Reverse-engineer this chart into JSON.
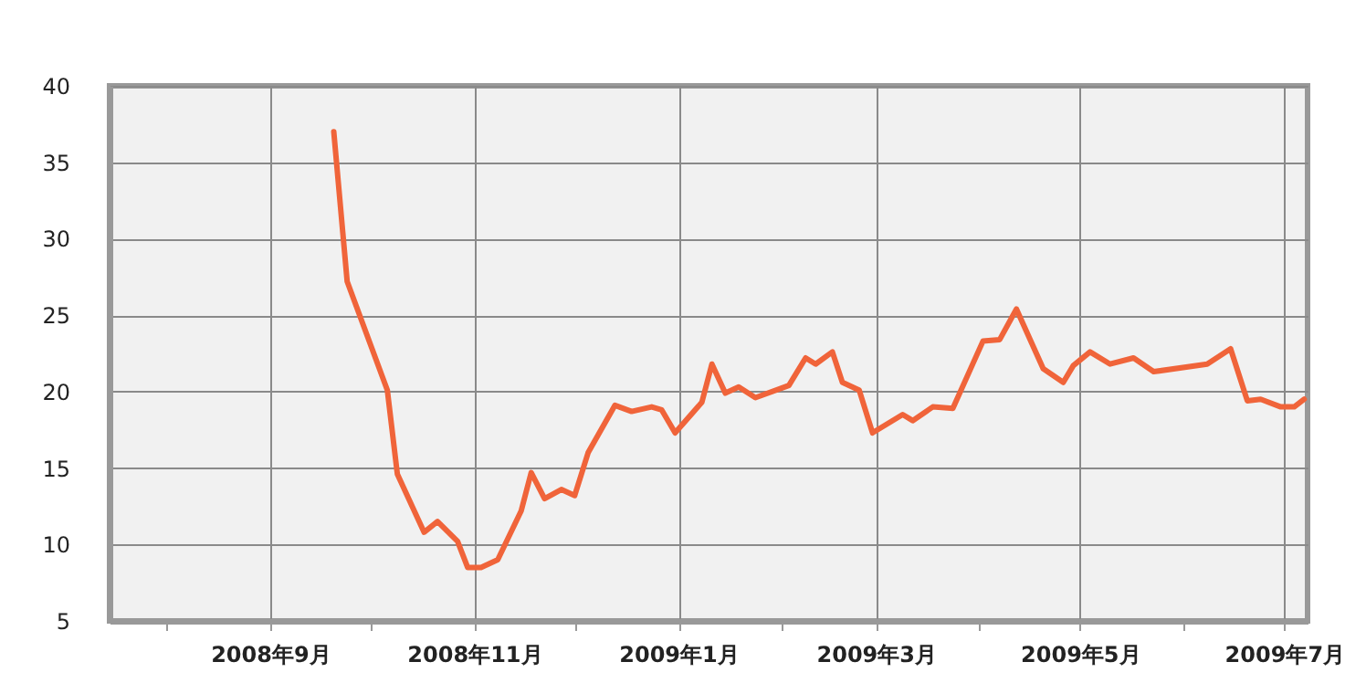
{
  "chart_data": {
    "type": "line",
    "x": [
      "2008-09-20",
      "2008-09-24",
      "2008-10-06",
      "2008-10-09",
      "2008-10-17",
      "2008-10-21",
      "2008-10-27",
      "2008-10-30",
      "2008-11-03",
      "2008-11-08",
      "2008-11-15",
      "2008-11-18",
      "2008-11-22",
      "2008-11-27",
      "2008-12-01",
      "2008-12-05",
      "2008-12-13",
      "2008-12-18",
      "2008-12-24",
      "2008-12-27",
      "2008-12-31",
      "2009-01-08",
      "2009-01-11",
      "2009-01-15",
      "2009-01-19",
      "2009-01-24",
      "2009-02-03",
      "2009-02-08",
      "2009-02-11",
      "2009-02-16",
      "2009-02-19",
      "2009-02-24",
      "2009-02-28",
      "2009-03-09",
      "2009-03-12",
      "2009-03-18",
      "2009-03-24",
      "2009-04-02",
      "2009-04-07",
      "2009-04-12",
      "2009-04-20",
      "2009-04-26",
      "2009-04-29",
      "2009-05-04",
      "2009-05-10",
      "2009-05-17",
      "2009-05-23",
      "2009-06-08",
      "2009-06-15",
      "2009-06-20",
      "2009-06-24",
      "2009-06-30",
      "2009-07-04",
      "2009-07-07"
    ],
    "series": [
      {
        "color": "#f0643a",
        "values": [
          37.0,
          27.2,
          20.1,
          14.6,
          10.8,
          11.5,
          10.2,
          8.5,
          8.5,
          9.0,
          12.2,
          14.7,
          13.0,
          13.6,
          13.2,
          16.0,
          19.1,
          18.7,
          19.0,
          18.8,
          17.3,
          19.3,
          21.8,
          19.9,
          20.3,
          19.6,
          20.4,
          22.2,
          21.8,
          22.6,
          20.6,
          20.1,
          17.3,
          18.5,
          18.1,
          19.0,
          18.9,
          23.3,
          23.4,
          25.4,
          21.5,
          20.6,
          21.7,
          22.6,
          21.8,
          22.2,
          21.3,
          21.8,
          22.8,
          19.4,
          19.5,
          19.0,
          19.0,
          19.5
        ]
      }
    ],
    "xlim": [
      "2008-07-15",
      "2009-07-08"
    ],
    "xticks": [
      {
        "value": "2008-08-01",
        "label": null
      },
      {
        "value": "2008-09-01",
        "label": "2008年9月"
      },
      {
        "value": "2008-10-01",
        "label": null
      },
      {
        "value": "2008-11-01",
        "label": "2008年11月"
      },
      {
        "value": "2008-12-01",
        "label": null
      },
      {
        "value": "2009-01-01",
        "label": "2009年1月"
      },
      {
        "value": "2009-02-01",
        "label": null
      },
      {
        "value": "2009-03-01",
        "label": "2009年3月"
      },
      {
        "value": "2009-04-01",
        "label": null
      },
      {
        "value": "2009-05-01",
        "label": "2009年5月"
      },
      {
        "value": "2009-06-01",
        "label": null
      },
      {
        "value": "2009-07-01",
        "label": "2009年7月"
      }
    ],
    "ylim": [
      5,
      40
    ],
    "yticks": [
      5,
      10,
      15,
      20,
      25,
      30,
      35,
      40
    ],
    "grid": true,
    "marker": "none",
    "line_style": "solid"
  }
}
